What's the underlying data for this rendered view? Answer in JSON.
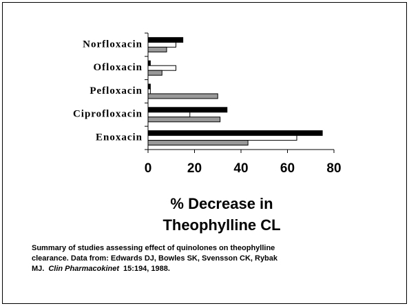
{
  "chart_data": {
    "type": "hbar",
    "categories": [
      "Norfloxacin",
      "Ofloxacin",
      "Pefloxacin",
      "Ciprofloxacin",
      "Enoxacin"
    ],
    "series": [
      {
        "color": "#000000",
        "values": [
          15,
          1,
          1,
          34,
          75
        ]
      },
      {
        "color": "#ffffff",
        "values": [
          12,
          12,
          1,
          18,
          64
        ]
      },
      {
        "color": "#999999",
        "values": [
          8,
          6,
          30,
          31,
          43
        ]
      }
    ],
    "xlim": [
      0,
      80
    ],
    "xticks": [
      0,
      20,
      40,
      60,
      80
    ],
    "xlabel": [
      "% Decrease in",
      "Theophylline CL"
    ],
    "caption_lines": [
      "Summary of studies assessing effect of quinolones on theophylline",
      "clearance.  Data from: Edwards DJ, Bowles SK, Svensson CK, Rybak"
    ],
    "caption_last": [
      "MJ.",
      "Clin Pharmacokinet",
      "15:194, 1988."
    ]
  }
}
